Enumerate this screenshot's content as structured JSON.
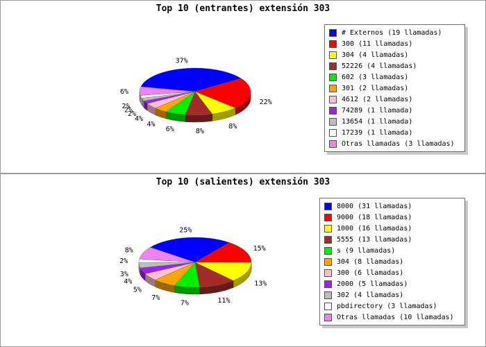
{
  "chart_data": [
    {
      "type": "pie",
      "title": "Top 10 (entrantes) extensión 303",
      "categories": [
        "# Externos",
        "300",
        "304",
        "52226",
        "602",
        "301",
        "4612",
        "74289",
        "13654",
        "17239",
        "Otras llamadas"
      ],
      "values": [
        19,
        11,
        4,
        4,
        3,
        2,
        2,
        1,
        1,
        1,
        3
      ],
      "percent_labels": [
        "37%",
        "22%",
        "8%",
        "8%",
        "6%",
        "4%",
        "4%",
        "2%",
        "2%",
        "2%",
        "6%"
      ],
      "legend_labels": [
        "# Externos (19 llamadas)",
        "300 (11 llamadas)",
        "304 (4 llamadas)",
        "52226 (4 llamadas)",
        "602 (3 llamadas)",
        "301 (2 llamadas)",
        "4612 (2 llamadas)",
        "74289 (1 llamada)",
        "13654 (1 llamada)",
        "17239 (1 llamada)",
        "Otras llamadas (3 llamadas)"
      ],
      "colors": [
        "#0000ff",
        "#ff0000",
        "#ffff00",
        "#a52a2a",
        "#00ee00",
        "#ffa500",
        "#ffc0cb",
        "#a020f0",
        "#bebebe",
        "#ffffff",
        "#ee82ee"
      ],
      "legend_position": "right"
    },
    {
      "type": "pie",
      "title": "Top 10 (salientes) extensión 303",
      "categories": [
        "8000",
        "9000",
        "1000",
        "5555",
        "s",
        "304",
        "300",
        "2000",
        "302",
        "pbdirectory",
        "Otras llamadas"
      ],
      "values": [
        31,
        18,
        16,
        13,
        9,
        8,
        6,
        5,
        4,
        3,
        10
      ],
      "percent_labels": [
        "25%",
        "15%",
        "13%",
        "11%",
        "7%",
        "7%",
        "5%",
        "4%",
        "3%",
        "2%",
        "8%"
      ],
      "legend_labels": [
        "8000 (31 llamadas)",
        "9000 (18 llamadas)",
        "1000 (16 llamadas)",
        "5555 (13 llamadas)",
        "s (9 llamadas)",
        "304 (8 llamadas)",
        "300 (6 llamadas)",
        "2000 (5 llamadas)",
        "302 (4 llamadas)",
        "pbdirectory (3 llamadas)",
        "Otras llamadas (10 llamadas)"
      ],
      "colors": [
        "#0000ff",
        "#ff0000",
        "#ffff00",
        "#a52a2a",
        "#00ee00",
        "#ffa500",
        "#ffc0cb",
        "#a020f0",
        "#bebebe",
        "#ffffff",
        "#ee82ee"
      ],
      "legend_position": "right"
    }
  ]
}
